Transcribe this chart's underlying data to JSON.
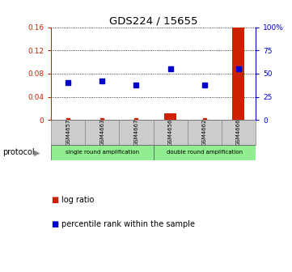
{
  "title": "GDS224 / 15655",
  "samples": [
    "GSM4657",
    "GSM4663",
    "GSM4667",
    "GSM4656",
    "GSM4662",
    "GSM4666"
  ],
  "log_ratio": [
    -0.002,
    -0.003,
    -0.002,
    0.012,
    -0.001,
    0.16
  ],
  "percentile_rank_pct": [
    40.6,
    42.5,
    37.5,
    55.0,
    37.5,
    55.0
  ],
  "ylim_left": [
    0,
    0.16
  ],
  "ylim_right": [
    0,
    100
  ],
  "yticks_left": [
    0,
    0.04,
    0.08,
    0.12,
    0.16
  ],
  "yticks_left_labels": [
    "0",
    "0.04",
    "0.08",
    "0.12",
    "0.16"
  ],
  "yticks_right": [
    0,
    25,
    50,
    75,
    100
  ],
  "yticks_right_labels": [
    "0",
    "25",
    "50",
    "75",
    "100%"
  ],
  "log_ratio_color": "#cc2200",
  "percentile_color": "#0000cc",
  "sample_bg_color": "#cccccc",
  "protocol_row_color": "#90ee90",
  "left_tick_color": "#cc2200",
  "right_tick_color": "#0000cc",
  "single_label": "single round amplification",
  "double_label": "double round amplification"
}
